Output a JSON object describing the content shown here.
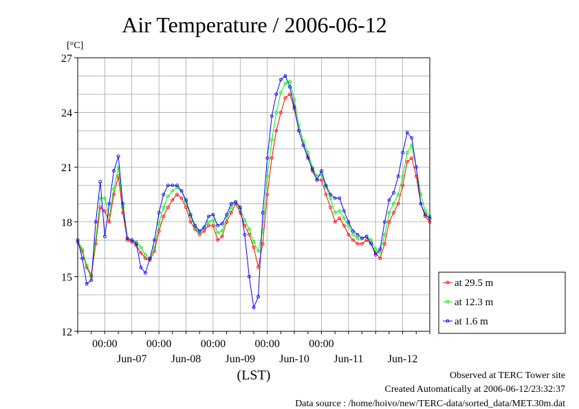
{
  "chart_data": {
    "type": "line",
    "title": "Air Temperature / 2006-06-12",
    "ylabel": "[°C]",
    "xlabel": "(LST)",
    "ylim": [
      12,
      27
    ],
    "yticks": [
      12,
      15,
      18,
      21,
      24,
      27
    ],
    "xlim": [
      "2006-06-06 12:00",
      "2006-06-12 24:00"
    ],
    "time_ticks": [
      "00:00",
      "00:00",
      "00:00",
      "00:00",
      "00:00"
    ],
    "date_ticks": [
      "Jun-07",
      "Jun-08",
      "Jun-09",
      "Jun-10",
      "Jun-11",
      "Jun-12"
    ],
    "grid": true,
    "legend_position": "right",
    "series": [
      {
        "name": "at 29.5 m",
        "color": "#ff0000",
        "x": [
          "2006-06-06 12:00",
          "2006-06-06 14:00",
          "2006-06-06 16:00",
          "2006-06-06 18:00",
          "2006-06-06 20:00",
          "2006-06-06 22:00",
          "2006-06-07 00:00",
          "2006-06-07 02:00",
          "2006-06-07 04:00",
          "2006-06-07 06:00",
          "2006-06-07 08:00",
          "2006-06-07 10:00",
          "2006-06-07 12:00",
          "2006-06-07 14:00",
          "2006-06-07 16:00",
          "2006-06-07 18:00",
          "2006-06-07 20:00",
          "2006-06-07 22:00",
          "2006-06-08 00:00",
          "2006-06-08 02:00",
          "2006-06-08 04:00",
          "2006-06-08 06:00",
          "2006-06-08 08:00",
          "2006-06-08 10:00",
          "2006-06-08 12:00",
          "2006-06-08 14:00",
          "2006-06-08 16:00",
          "2006-06-08 18:00",
          "2006-06-08 20:00",
          "2006-06-08 22:00",
          "2006-06-09 00:00",
          "2006-06-09 02:00",
          "2006-06-09 04:00",
          "2006-06-09 06:00",
          "2006-06-09 08:00",
          "2006-06-09 10:00",
          "2006-06-09 12:00",
          "2006-06-09 14:00",
          "2006-06-09 16:00",
          "2006-06-09 18:00",
          "2006-06-09 20:00",
          "2006-06-09 22:00",
          "2006-06-10 00:00",
          "2006-06-10 02:00",
          "2006-06-10 04:00",
          "2006-06-10 06:00",
          "2006-06-10 08:00",
          "2006-06-10 10:00",
          "2006-06-10 12:00",
          "2006-06-10 14:00",
          "2006-06-10 16:00",
          "2006-06-10 18:00",
          "2006-06-10 20:00",
          "2006-06-10 22:00",
          "2006-06-11 00:00",
          "2006-06-11 02:00",
          "2006-06-11 04:00",
          "2006-06-11 06:00",
          "2006-06-11 08:00",
          "2006-06-11 10:00",
          "2006-06-11 12:00",
          "2006-06-11 14:00",
          "2006-06-11 16:00",
          "2006-06-11 18:00",
          "2006-06-11 20:00",
          "2006-06-11 22:00",
          "2006-06-12 00:00",
          "2006-06-12 02:00",
          "2006-06-12 04:00",
          "2006-06-12 06:00",
          "2006-06-12 08:00",
          "2006-06-12 10:00",
          "2006-06-12 12:00",
          "2006-06-12 14:00",
          "2006-06-12 16:00",
          "2006-06-12 18:00",
          "2006-06-12 20:00",
          "2006-06-12 22:00",
          "2006-06-13 00:00"
        ],
        "values": [
          16.9,
          16.4,
          15.5,
          15.0,
          16.8,
          18.8,
          18.6,
          18.0,
          19.5,
          20.5,
          18.5,
          17.0,
          16.9,
          16.7,
          16.3,
          16.0,
          15.9,
          16.4,
          17.5,
          18.3,
          18.8,
          19.2,
          19.5,
          19.3,
          18.8,
          18.0,
          17.6,
          17.3,
          17.5,
          17.8,
          17.8,
          17.0,
          17.2,
          18.0,
          18.5,
          19.0,
          18.5,
          17.8,
          17.3,
          16.6,
          15.5,
          16.8,
          19.5,
          21.5,
          23.0,
          24.0,
          24.8,
          25.0,
          24.2,
          23.0,
          22.2,
          21.6,
          20.8,
          20.3,
          20.3,
          19.5,
          18.8,
          18.0,
          18.2,
          17.8,
          17.3,
          17.0,
          16.8,
          16.8,
          17.0,
          16.8,
          16.3,
          16.0,
          16.8,
          18.0,
          18.5,
          19.0,
          20.0,
          21.3,
          21.5,
          20.5,
          19.0,
          18.3,
          18.0
        ]
      },
      {
        "name": "at 12.3 m",
        "color": "#00ee00",
        "x": [
          "2006-06-06 12:00",
          "2006-06-06 14:00",
          "2006-06-06 16:00",
          "2006-06-06 18:00",
          "2006-06-06 20:00",
          "2006-06-06 22:00",
          "2006-06-07 00:00",
          "2006-06-07 02:00",
          "2006-06-07 04:00",
          "2006-06-07 06:00",
          "2006-06-07 08:00",
          "2006-06-07 10:00",
          "2006-06-07 12:00",
          "2006-06-07 14:00",
          "2006-06-07 16:00",
          "2006-06-07 18:00",
          "2006-06-07 20:00",
          "2006-06-07 22:00",
          "2006-06-08 00:00",
          "2006-06-08 02:00",
          "2006-06-08 04:00",
          "2006-06-08 06:00",
          "2006-06-08 08:00",
          "2006-06-08 10:00",
          "2006-06-08 12:00",
          "2006-06-08 14:00",
          "2006-06-08 16:00",
          "2006-06-08 18:00",
          "2006-06-08 20:00",
          "2006-06-08 22:00",
          "2006-06-09 00:00",
          "2006-06-09 02:00",
          "2006-06-09 04:00",
          "2006-06-09 06:00",
          "2006-06-09 08:00",
          "2006-06-09 10:00",
          "2006-06-09 12:00",
          "2006-06-09 14:00",
          "2006-06-09 16:00",
          "2006-06-09 18:00",
          "2006-06-09 20:00",
          "2006-06-09 22:00",
          "2006-06-10 00:00",
          "2006-06-10 02:00",
          "2006-06-10 04:00",
          "2006-06-10 06:00",
          "2006-06-10 08:00",
          "2006-06-10 10:00",
          "2006-06-10 12:00",
          "2006-06-10 14:00",
          "2006-06-10 16:00",
          "2006-06-10 18:00",
          "2006-06-10 20:00",
          "2006-06-10 22:00",
          "2006-06-11 00:00",
          "2006-06-11 02:00",
          "2006-06-11 04:00",
          "2006-06-11 06:00",
          "2006-06-11 08:00",
          "2006-06-11 10:00",
          "2006-06-11 12:00",
          "2006-06-11 14:00",
          "2006-06-11 16:00",
          "2006-06-11 18:00",
          "2006-06-11 20:00",
          "2006-06-11 22:00",
          "2006-06-12 00:00",
          "2006-06-12 02:00",
          "2006-06-12 04:00",
          "2006-06-12 06:00",
          "2006-06-12 08:00",
          "2006-06-12 10:00",
          "2006-06-12 12:00",
          "2006-06-12 14:00",
          "2006-06-12 16:00",
          "2006-06-12 18:00",
          "2006-06-12 20:00",
          "2006-06-12 22:00",
          "2006-06-13 00:00"
        ],
        "values": [
          17.0,
          16.5,
          15.6,
          15.1,
          17.0,
          19.3,
          19.3,
          18.3,
          19.8,
          21.0,
          18.8,
          17.1,
          17.0,
          16.9,
          16.6,
          16.2,
          16.0,
          16.6,
          17.9,
          18.8,
          19.4,
          19.7,
          19.9,
          19.7,
          19.1,
          18.3,
          17.7,
          17.4,
          17.7,
          18.0,
          18.1,
          17.4,
          17.5,
          18.2,
          18.8,
          19.1,
          18.7,
          18.1,
          17.6,
          16.9,
          16.4,
          17.5,
          20.5,
          22.5,
          24.0,
          25.1,
          25.6,
          25.7,
          24.7,
          23.3,
          22.4,
          21.8,
          21.0,
          20.5,
          20.6,
          19.9,
          19.3,
          18.5,
          18.6,
          18.2,
          17.8,
          17.3,
          17.1,
          17.1,
          17.2,
          17.0,
          16.5,
          16.3,
          17.3,
          18.5,
          19.0,
          19.5,
          20.5,
          21.8,
          22.2,
          21.0,
          19.5,
          18.6,
          18.3
        ]
      },
      {
        "name": "at 1.6 m",
        "color": "#0000ff",
        "x": [
          "2006-06-06 12:00",
          "2006-06-06 14:00",
          "2006-06-06 16:00",
          "2006-06-06 18:00",
          "2006-06-06 20:00",
          "2006-06-06 22:00",
          "2006-06-07 00:00",
          "2006-06-07 02:00",
          "2006-06-07 04:00",
          "2006-06-07 06:00",
          "2006-06-07 08:00",
          "2006-06-07 10:00",
          "2006-06-07 12:00",
          "2006-06-07 14:00",
          "2006-06-07 16:00",
          "2006-06-07 18:00",
          "2006-06-07 20:00",
          "2006-06-07 22:00",
          "2006-06-08 00:00",
          "2006-06-08 02:00",
          "2006-06-08 04:00",
          "2006-06-08 06:00",
          "2006-06-08 08:00",
          "2006-06-08 10:00",
          "2006-06-08 12:00",
          "2006-06-08 14:00",
          "2006-06-08 16:00",
          "2006-06-08 18:00",
          "2006-06-08 20:00",
          "2006-06-08 22:00",
          "2006-06-09 00:00",
          "2006-06-09 02:00",
          "2006-06-09 04:00",
          "2006-06-09 06:00",
          "2006-06-09 08:00",
          "2006-06-09 10:00",
          "2006-06-09 12:00",
          "2006-06-09 14:00",
          "2006-06-09 16:00",
          "2006-06-09 18:00",
          "2006-06-09 20:00",
          "2006-06-09 22:00",
          "2006-06-10 00:00",
          "2006-06-10 02:00",
          "2006-06-10 04:00",
          "2006-06-10 06:00",
          "2006-06-10 08:00",
          "2006-06-10 10:00",
          "2006-06-10 12:00",
          "2006-06-10 14:00",
          "2006-06-10 16:00",
          "2006-06-10 18:00",
          "2006-06-10 20:00",
          "2006-06-10 22:00",
          "2006-06-11 00:00",
          "2006-06-11 02:00",
          "2006-06-11 04:00",
          "2006-06-11 06:00",
          "2006-06-11 08:00",
          "2006-06-11 10:00",
          "2006-06-11 12:00",
          "2006-06-11 14:00",
          "2006-06-11 16:00",
          "2006-06-11 18:00",
          "2006-06-11 20:00",
          "2006-06-11 22:00",
          "2006-06-12 00:00",
          "2006-06-12 02:00",
          "2006-06-12 04:00",
          "2006-06-12 06:00",
          "2006-06-12 08:00",
          "2006-06-12 10:00",
          "2006-06-12 12:00",
          "2006-06-12 14:00",
          "2006-06-12 16:00",
          "2006-06-12 18:00",
          "2006-06-12 20:00",
          "2006-06-12 22:00",
          "2006-06-13 00:00"
        ],
        "values": [
          17.0,
          16.0,
          14.6,
          14.8,
          18.0,
          20.2,
          17.2,
          19.0,
          20.8,
          21.6,
          19.0,
          17.1,
          17.0,
          16.8,
          15.5,
          15.2,
          16.0,
          17.0,
          18.5,
          19.5,
          20.0,
          20.0,
          20.0,
          19.7,
          19.2,
          18.4,
          17.8,
          17.5,
          17.7,
          18.3,
          18.4,
          17.8,
          17.9,
          18.4,
          19.0,
          19.1,
          18.8,
          17.3,
          15.0,
          13.3,
          13.9,
          18.5,
          21.5,
          23.8,
          25.0,
          25.8,
          26.0,
          25.4,
          24.3,
          23.0,
          22.2,
          21.5,
          20.9,
          20.3,
          20.8,
          20.0,
          19.5,
          19.3,
          19.3,
          18.6,
          18.0,
          17.5,
          17.3,
          17.1,
          17.2,
          16.8,
          16.2,
          16.5,
          18.0,
          19.2,
          19.6,
          20.5,
          21.8,
          22.9,
          22.6,
          21.0,
          19.0,
          18.4,
          18.2
        ]
      }
    ]
  },
  "footer": {
    "line1": "Observed at TERC Tower site",
    "line2": "Created Automatically at 2006-06-12/23:32:37",
    "line3": "Data source : /home/hoivo/new/TERC-data/sorted_data/MET.30m.dat"
  }
}
